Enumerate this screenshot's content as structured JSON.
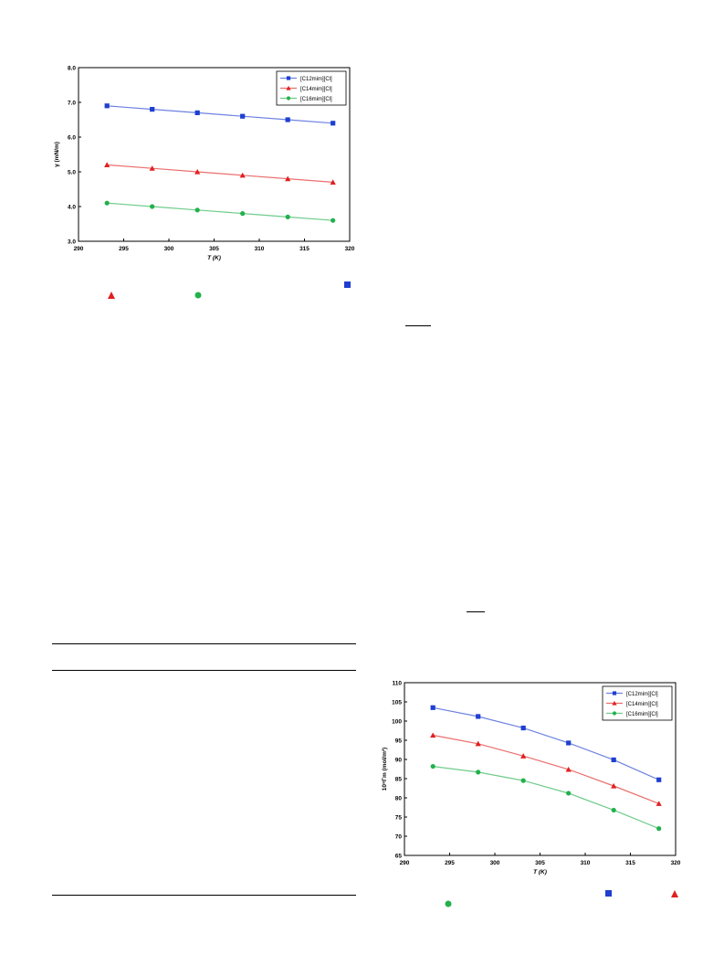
{
  "colors": {
    "blue": "#1f3fd0",
    "red": "#e02020",
    "green": "#22b14c",
    "blue_line": "#7f7fd6",
    "red_line": "#e07070",
    "green_line": "#70d090"
  },
  "chart_data": [
    {
      "type": "line",
      "title": "",
      "xlabel": "T (K)",
      "ylabel": "γ (mN/m)",
      "xlim": [
        290,
        320
      ],
      "ylim": [
        3.0,
        8.0
      ],
      "xticks": [
        "290",
        "295",
        "300",
        "305",
        "310",
        "315",
        "320"
      ],
      "yticks": [
        "3.0",
        "4.0",
        "5.0",
        "6.0",
        "7.0",
        "8.0"
      ],
      "x": [
        293.15,
        298.15,
        303.15,
        308.15,
        313.15,
        318.15
      ],
      "legend_position": "top-right",
      "series": [
        {
          "name": "[C12mim][Cl]",
          "marker": "square",
          "color": "#1f3fd0",
          "values": [
            6.9,
            6.8,
            6.7,
            6.6,
            6.5,
            6.4
          ]
        },
        {
          "name": "[C14mim][Cl]",
          "marker": "triangle",
          "color": "#e02020",
          "values": [
            5.2,
            5.1,
            5.0,
            4.9,
            4.8,
            4.7
          ]
        },
        {
          "name": "[C16mim][Cl]",
          "marker": "circle",
          "color": "#22b14c",
          "values": [
            4.1,
            4.0,
            3.9,
            3.8,
            3.7,
            3.6
          ]
        }
      ]
    },
    {
      "type": "line",
      "title": "",
      "xlabel": "T (K)",
      "ylabel": "10⁸Γm (mol/m²)",
      "xlim": [
        290,
        320
      ],
      "ylim": [
        65,
        110
      ],
      "xticks": [
        "290",
        "295",
        "300",
        "305",
        "310",
        "315",
        "320"
      ],
      "yticks": [
        "65",
        "70",
        "75",
        "80",
        "85",
        "90",
        "95",
        "100",
        "105",
        "110"
      ],
      "x": [
        293.15,
        298.15,
        303.15,
        308.15,
        313.15,
        318.15
      ],
      "legend_position": "top-right",
      "series": [
        {
          "name": "[C12mim][Cl]",
          "marker": "square",
          "color": "#1f3fd0",
          "values": [
            103.5,
            101.2,
            98.2,
            94.3,
            89.9,
            84.7
          ]
        },
        {
          "name": "[C14mim][Cl]",
          "marker": "triangle",
          "color": "#e02020",
          "values": [
            96.3,
            94.1,
            90.9,
            87.4,
            83.1,
            78.5
          ]
        },
        {
          "name": "[C16mim][Cl]",
          "marker": "circle",
          "color": "#22b14c",
          "values": [
            88.2,
            86.7,
            84.5,
            81.2,
            76.8,
            72.0
          ]
        }
      ]
    }
  ]
}
